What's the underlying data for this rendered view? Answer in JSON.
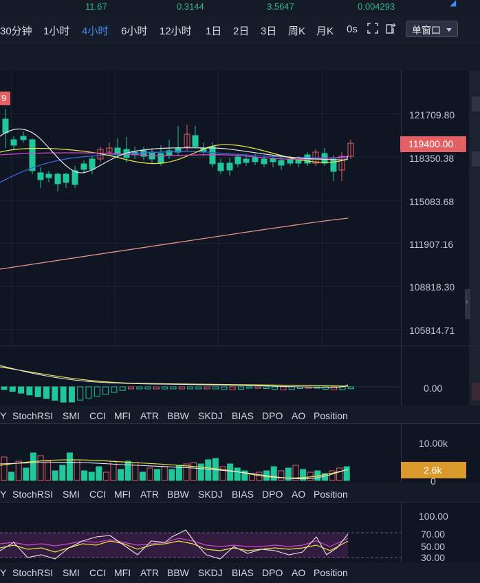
{
  "top_values": [
    "11.67",
    "0.3144",
    "3.5647",
    "0.004293"
  ],
  "timeframes": [
    "30分钟",
    "1小时",
    "4小时",
    "6小时",
    "12小时",
    "1日",
    "2日",
    "3日",
    "周K",
    "月K",
    "0s"
  ],
  "active_timeframe": "4小时",
  "window_mode": "单窗口",
  "price_badge_partial": "9",
  "price_axis": [
    "121709.80",
    "118350.38",
    "115083.68",
    "111907.16",
    "108818.30",
    "105814.71"
  ],
  "current_price": "119400.00",
  "macd_axis": [
    "0.00"
  ],
  "volume_axis": [
    "10.00k",
    "0"
  ],
  "volume_current": "2.6k",
  "rsi_axis": [
    "100.00",
    "70.00",
    "50.00",
    "30.00"
  ],
  "indicator_tabs": [
    "Y",
    "StochRSI",
    "SMI",
    "CCI",
    "MFI",
    "ATR",
    "BBW",
    "SKDJ",
    "BIAS",
    "DPO",
    "AO",
    "Position"
  ],
  "colors": {
    "up": "#e36064",
    "down": "#1fc79a",
    "accent": "#3f8cff",
    "ma_yellow": "#e8e24a",
    "ma_pink": "#d146c8",
    "ma_white": "#e8e8e8",
    "ma_blue": "#3a66d8",
    "ma_salmon": "#e89384"
  }
}
